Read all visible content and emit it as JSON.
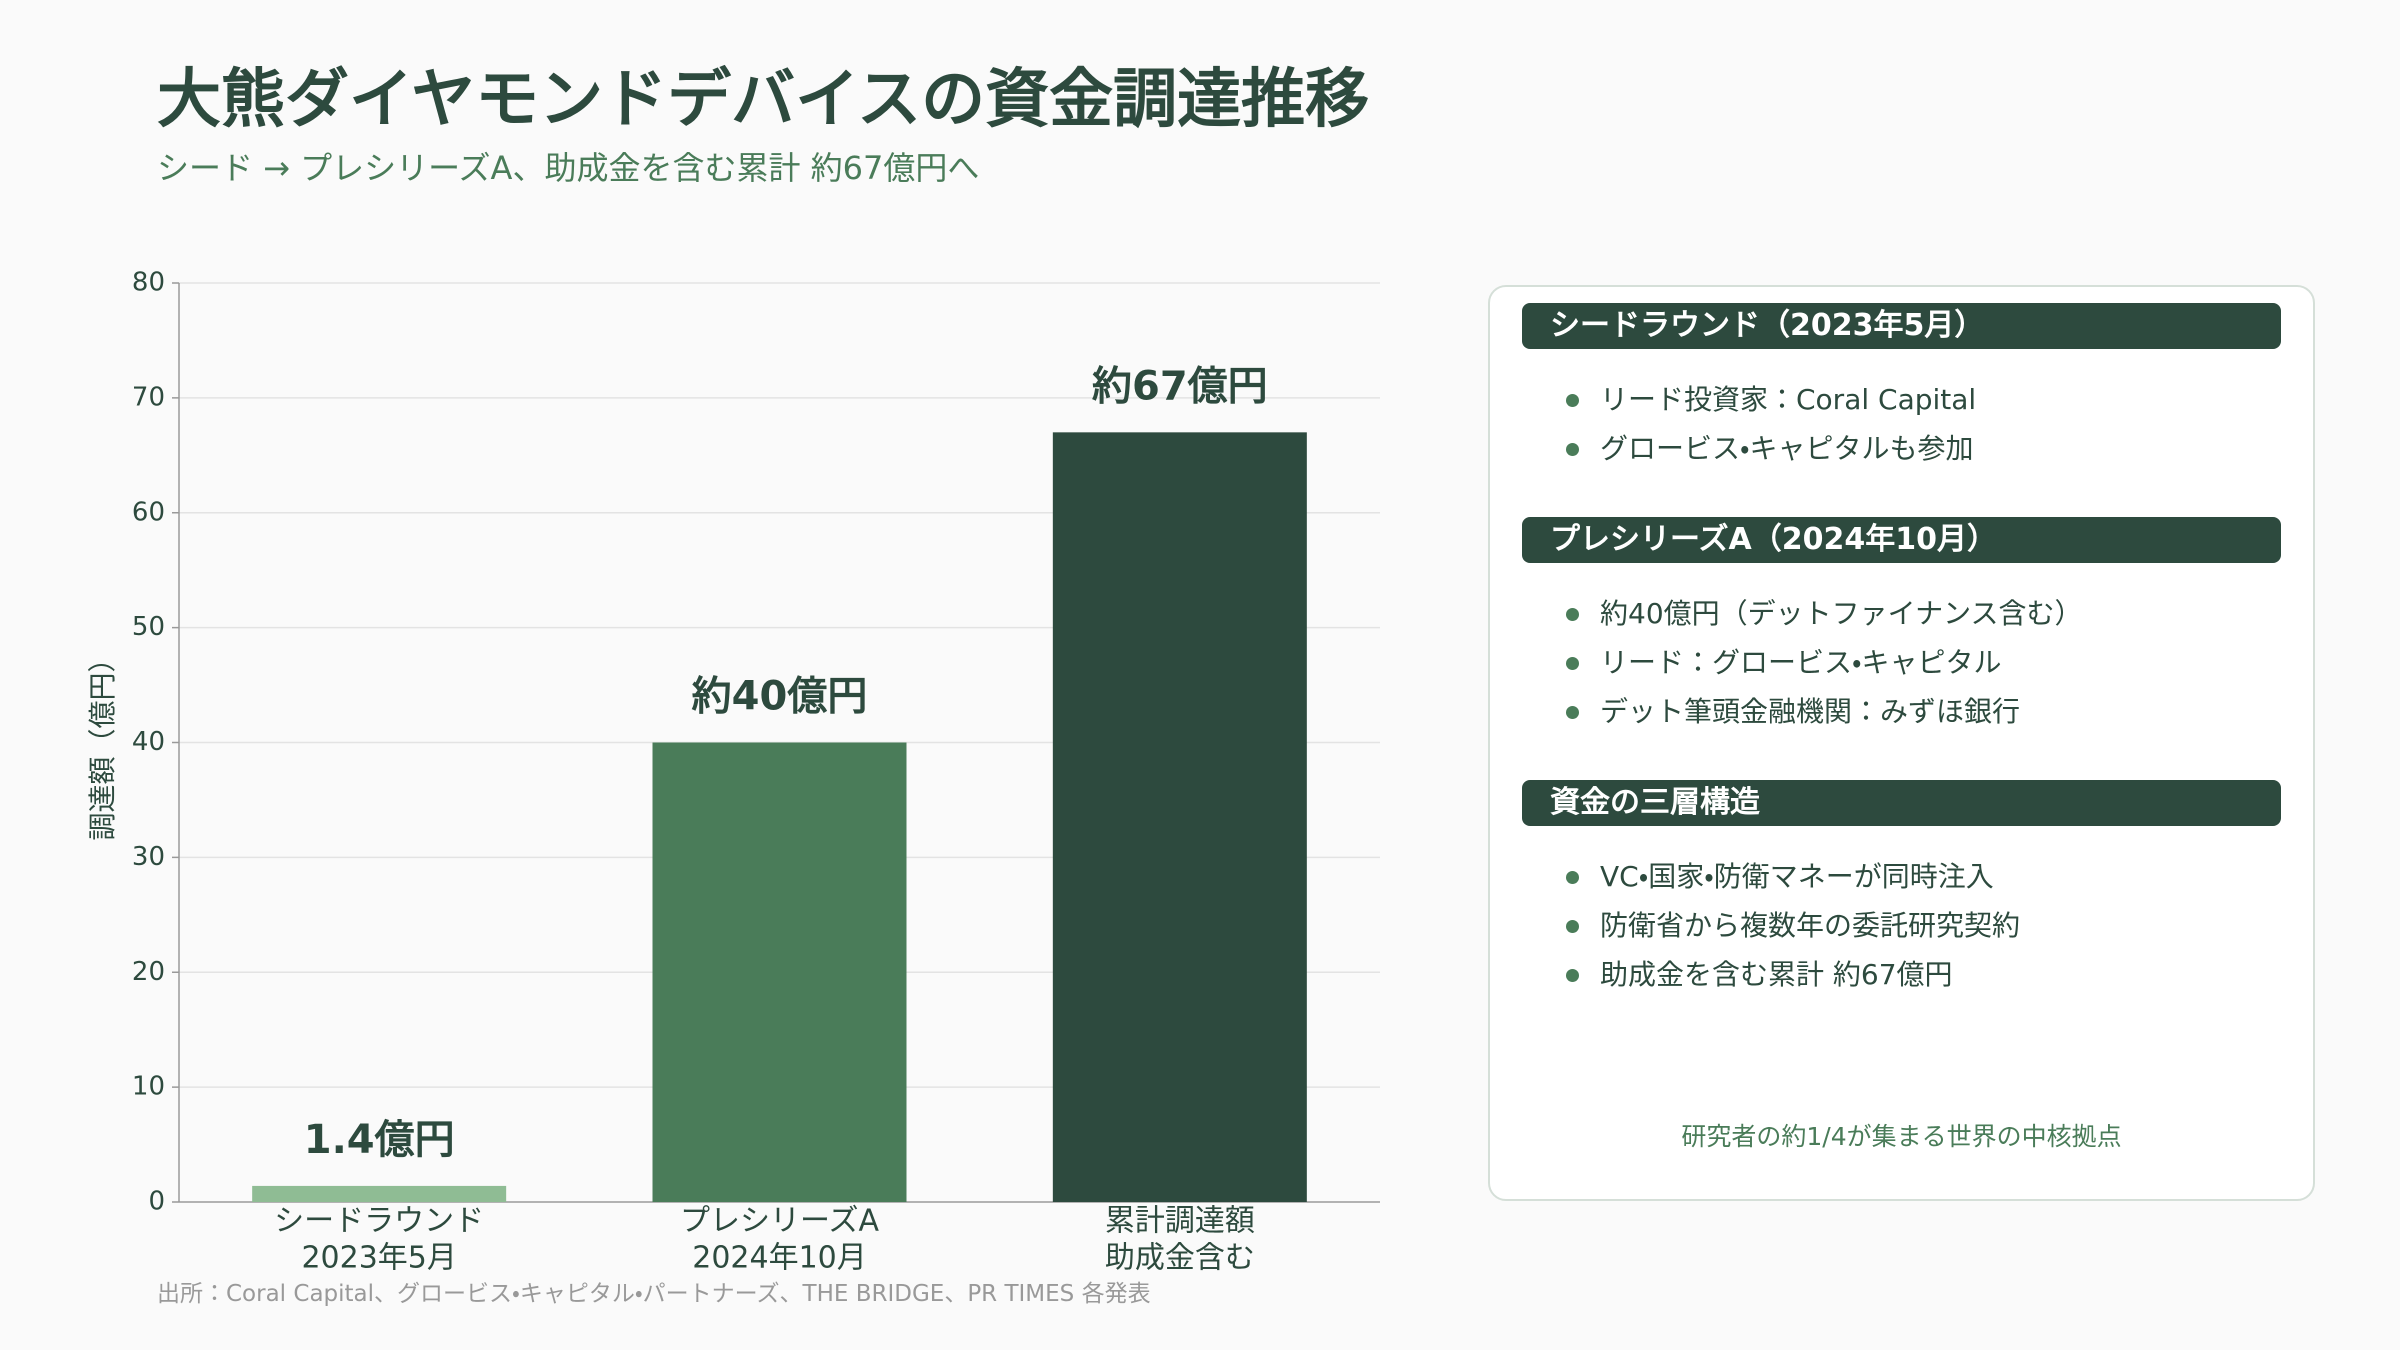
{
  "chart_data": {
    "type": "bar",
    "title": "大熊ダイヤモンドデバイスの資金調達推移",
    "subtitle": "シード → プレシリーズA、助成金を含む累計 約67億円へ",
    "y_label": "調達額（億円）",
    "categories": [
      [
        "シードラウンド",
        "2023年5月"
      ],
      [
        "プレシリーズA",
        "2024年10月"
      ],
      [
        "累計調達額",
        "助成金含む"
      ]
    ],
    "values": [
      1.4,
      40,
      67
    ],
    "value_labels": [
      "1.4億円",
      "約40億円",
      "約67億円"
    ],
    "colors": [
      "#8fbc94",
      "#4a7c59",
      "#2d4a3e"
    ],
    "ylim": [
      0,
      80
    ],
    "yticks": [
      0,
      10,
      20,
      30,
      40,
      50,
      60,
      70,
      80
    ],
    "grid": true
  },
  "source": "出所：Coral Capital、グロービス・キャピタル・パートナーズ、THE BRIDGE、PR TIMES 各発表",
  "panel": {
    "sections": [
      {
        "heading": "シードラウンド（2023年5月）",
        "items": [
          "リード投資家：Coral Capital",
          "グロービス・キャピタルも参加"
        ]
      },
      {
        "heading": "プレシリーズA（2024年10月）",
        "items": [
          "約40億円（デットファイナンス含む）",
          "リード：グロービス・キャピタル",
          "デット筆頭金融機関：みずほ銀行"
        ]
      },
      {
        "heading": "資金の三層構造",
        "items": [
          "VC・国家・防衛マネーが同時注入",
          "防衛省から複数年の委託研究契約",
          "助成金を含む累計 約67億円"
        ]
      }
    ],
    "note": "研究者の約1/4が集まる世界の中核拠点"
  }
}
